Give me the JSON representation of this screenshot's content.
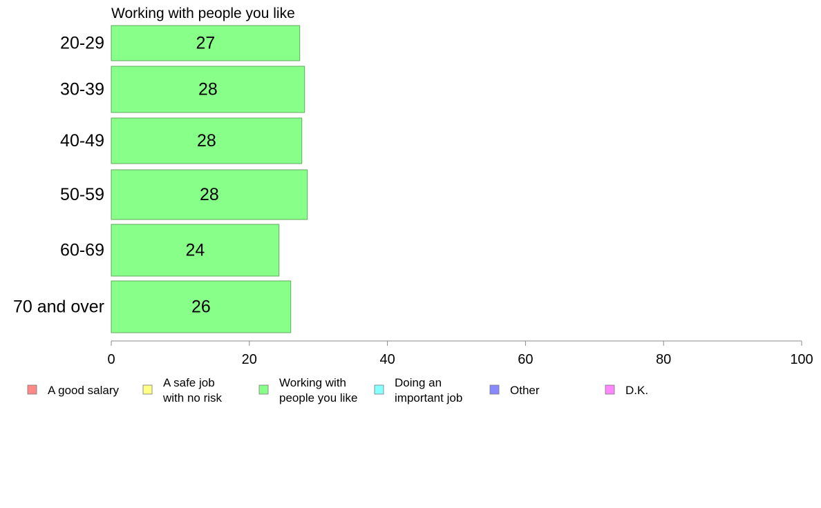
{
  "chart_data": {
    "type": "bar",
    "orientation": "horizontal",
    "title": "Working with people you like",
    "categories": [
      "20-29",
      "30-39",
      "40-49",
      "50-59",
      "60-69",
      "70 and over"
    ],
    "values": [
      27.3,
      28.0,
      27.6,
      28.4,
      24.3,
      26.0
    ],
    "value_labels": [
      "27",
      "28",
      "28",
      "28",
      "24",
      "26"
    ],
    "bar_color": "#88ff88",
    "bar_border_color": "#5fa85f",
    "xlim": [
      0,
      100
    ],
    "xticks": [
      0,
      20,
      40,
      60,
      80,
      100
    ],
    "grid": false,
    "legend_position": "bottom",
    "legend": [
      {
        "label_lines": [
          "A good salary"
        ],
        "color": "#ff8888"
      },
      {
        "label_lines": [
          "A safe job",
          "with no risk"
        ],
        "color": "#ffff88"
      },
      {
        "label_lines": [
          "Working with",
          "people you like"
        ],
        "color": "#88ff88"
      },
      {
        "label_lines": [
          "Doing an",
          "important job"
        ],
        "color": "#88ffff"
      },
      {
        "label_lines": [
          "Other"
        ],
        "color": "#8888ff"
      },
      {
        "label_lines": [
          "D.K."
        ],
        "color": "#ff88ff"
      }
    ]
  }
}
